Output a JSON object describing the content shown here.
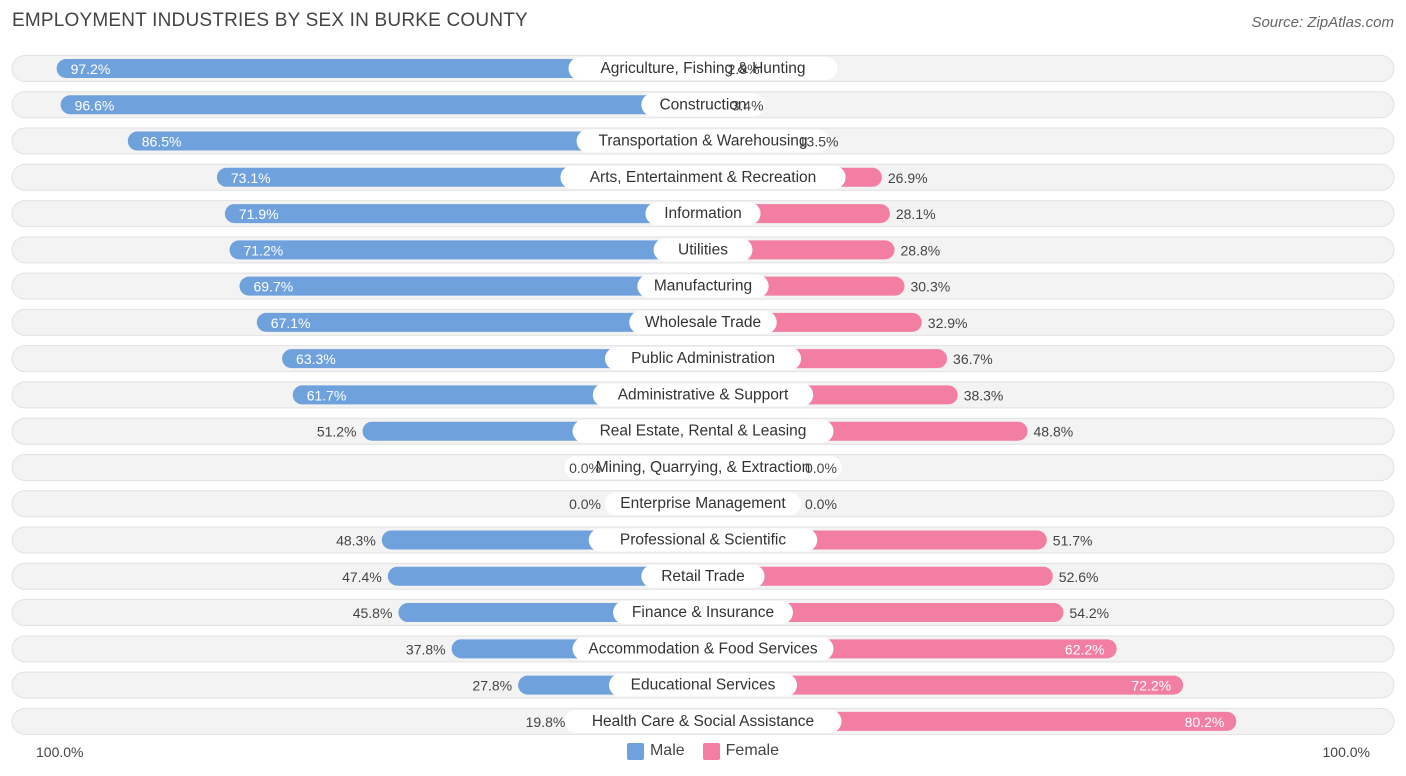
{
  "chart_data": {
    "type": "bar",
    "orientation": "horizontal-diverging",
    "title": "EMPLOYMENT INDUSTRIES BY SEX IN BURKE COUNTY",
    "source": "Source: ZipAtlas.com",
    "axis_left_label": "100.0%",
    "axis_right_label": "100.0%",
    "legend": {
      "male": "Male",
      "female": "Female"
    },
    "colors": {
      "male": "#6fa1dd",
      "female": "#f27ea2",
      "male_zero": "#adc9ec",
      "female_zero": "#f6b3c8"
    },
    "categories": [
      "Agriculture, Fishing & Hunting",
      "Construction",
      "Transportation & Warehousing",
      "Arts, Entertainment & Recreation",
      "Information",
      "Utilities",
      "Manufacturing",
      "Wholesale Trade",
      "Public Administration",
      "Administrative & Support",
      "Real Estate, Rental & Leasing",
      "Mining, Quarrying, & Extraction",
      "Enterprise Management",
      "Professional & Scientific",
      "Retail Trade",
      "Finance & Insurance",
      "Accommodation & Food Services",
      "Educational Services",
      "Health Care & Social Assistance"
    ],
    "series": [
      {
        "name": "Male",
        "values": [
          97.2,
          96.6,
          86.5,
          73.1,
          71.9,
          71.2,
          69.7,
          67.1,
          63.3,
          61.7,
          51.2,
          0.0,
          0.0,
          48.3,
          47.4,
          45.8,
          37.8,
          27.8,
          19.8
        ]
      },
      {
        "name": "Female",
        "values": [
          2.8,
          3.4,
          13.5,
          26.9,
          28.1,
          28.8,
          30.3,
          32.9,
          36.7,
          38.3,
          48.8,
          0.0,
          0.0,
          51.7,
          52.6,
          54.2,
          62.2,
          72.2,
          80.2
        ]
      }
    ],
    "labels_male": [
      "97.2%",
      "96.6%",
      "86.5%",
      "73.1%",
      "71.9%",
      "71.2%",
      "69.7%",
      "67.1%",
      "63.3%",
      "61.7%",
      "51.2%",
      "0.0%",
      "0.0%",
      "48.3%",
      "47.4%",
      "45.8%",
      "37.8%",
      "27.8%",
      "19.8%"
    ],
    "labels_female": [
      "2.8%",
      "3.4%",
      "13.5%",
      "26.9%",
      "28.1%",
      "28.8%",
      "30.3%",
      "32.9%",
      "36.7%",
      "38.3%",
      "48.8%",
      "0.0%",
      "0.0%",
      "51.7%",
      "52.6%",
      "54.2%",
      "62.2%",
      "72.2%",
      "80.2%"
    ],
    "xlim": [
      0,
      100
    ]
  }
}
